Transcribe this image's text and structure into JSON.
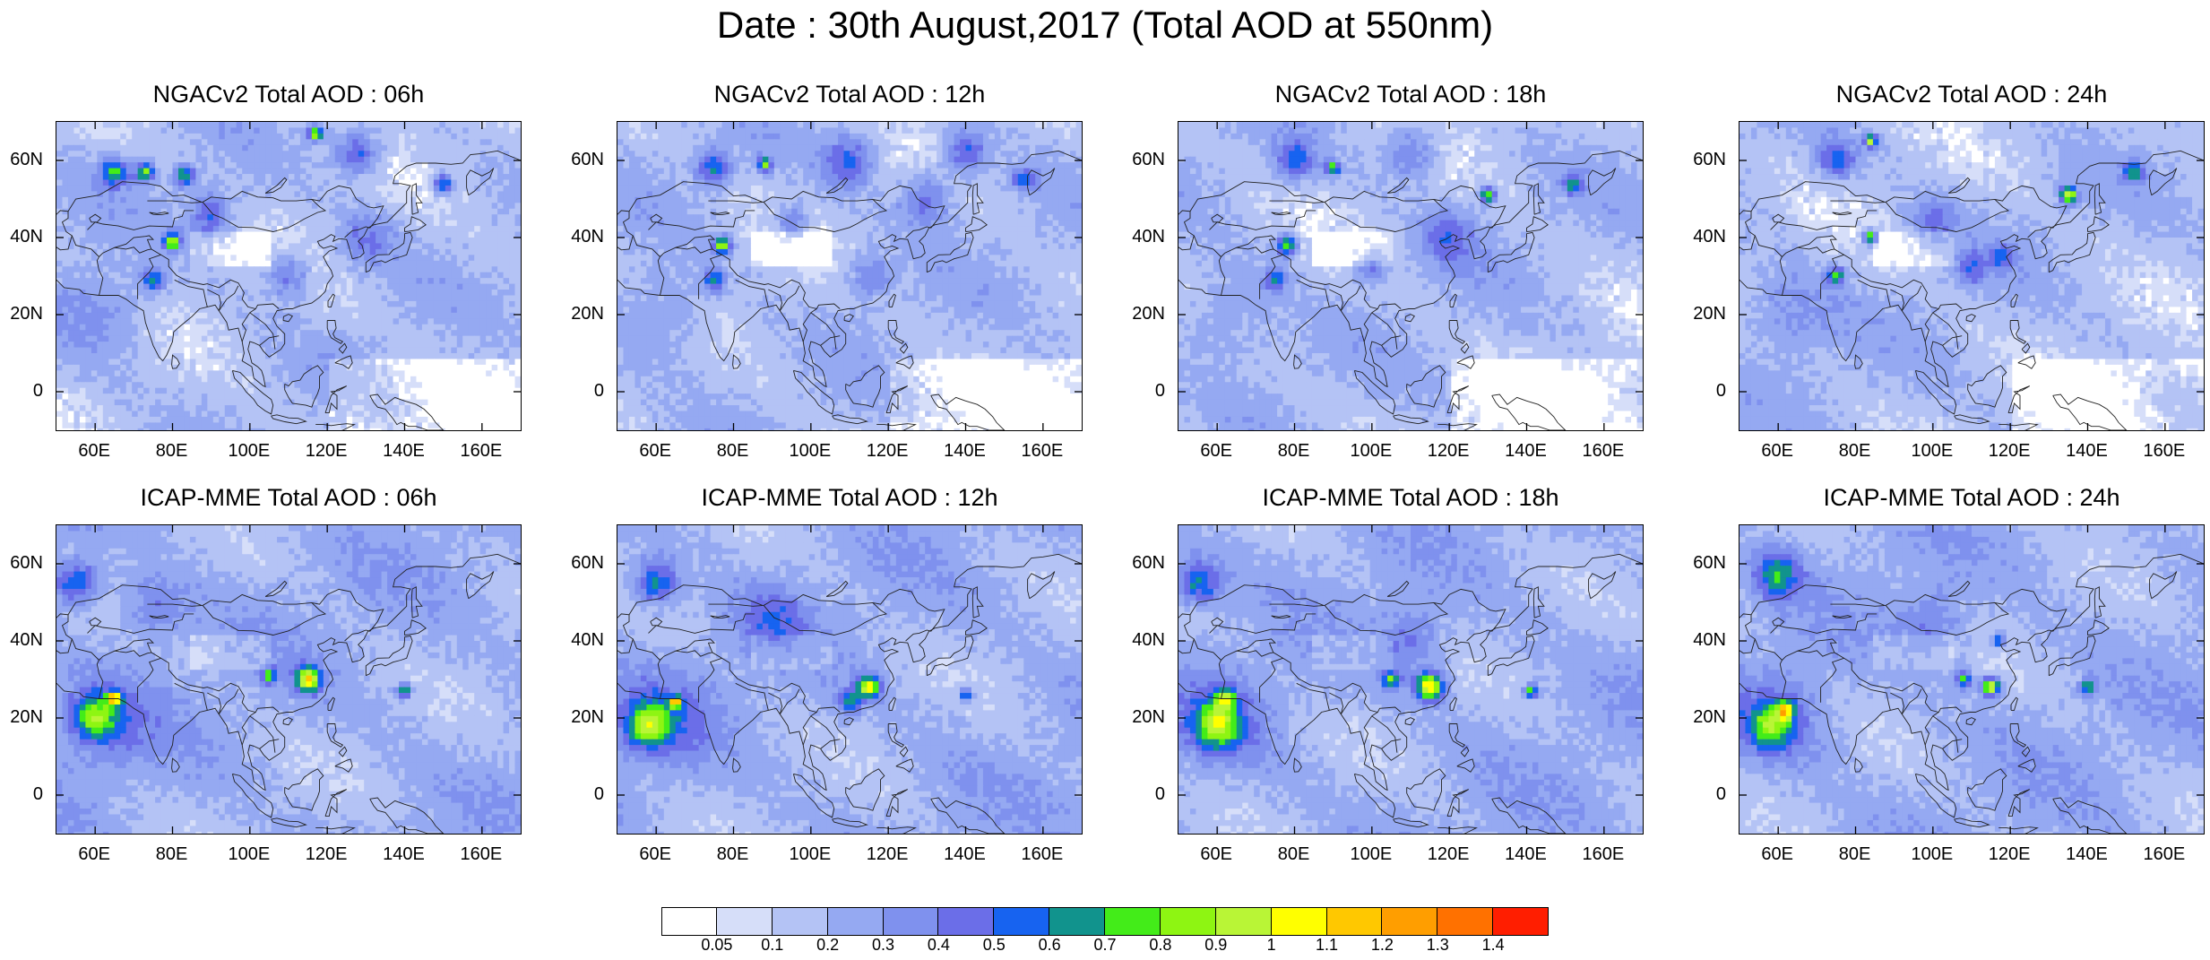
{
  "title": "Date : 30th August,2017 (Total AOD at 550nm)",
  "lat_labels": [
    "60N",
    "40N",
    "20N",
    "0"
  ],
  "lon_labels": [
    "60E",
    "80E",
    "100E",
    "120E",
    "140E",
    "160E"
  ],
  "panels": [
    {
      "title": "NGACv2 Total AOD : 06h",
      "model": "NGACv2",
      "lead": "06h"
    },
    {
      "title": "NGACv2 Total AOD : 12h",
      "model": "NGACv2",
      "lead": "12h"
    },
    {
      "title": "NGACv2 Total AOD : 18h",
      "model": "NGACv2",
      "lead": "18h"
    },
    {
      "title": "NGACv2 Total AOD : 24h",
      "model": "NGACv2",
      "lead": "24h"
    },
    {
      "title": "ICAP-MME Total AOD : 06h",
      "model": "ICAP-MME",
      "lead": "06h"
    },
    {
      "title": "ICAP-MME Total AOD : 12h",
      "model": "ICAP-MME",
      "lead": "12h"
    },
    {
      "title": "ICAP-MME Total AOD : 18h",
      "model": "ICAP-MME",
      "lead": "18h"
    },
    {
      "title": "ICAP-MME Total AOD : 24h",
      "model": "ICAP-MME",
      "lead": "24h"
    }
  ],
  "map_extent": {
    "lon_min": 50,
    "lon_max": 170,
    "lat_min": -10,
    "lat_max": 70
  },
  "colorbar": {
    "levels": [
      "0.05",
      "0.1",
      "0.2",
      "0.3",
      "0.4",
      "0.5",
      "0.6",
      "0.7",
      "0.8",
      "0.9",
      "1",
      "1.1",
      "1.2",
      "1.3",
      "1.4"
    ],
    "colors": [
      "#ffffff",
      "#d6def9",
      "#b4c3f5",
      "#95a9f2",
      "#7f91ee",
      "#6b6ee8",
      "#1763f0",
      "#11938d",
      "#43ec19",
      "#8ef512",
      "#b9f536",
      "#ffff00",
      "#ffc800",
      "#ff9e00",
      "#ff7100",
      "#ff1e00"
    ]
  }
}
